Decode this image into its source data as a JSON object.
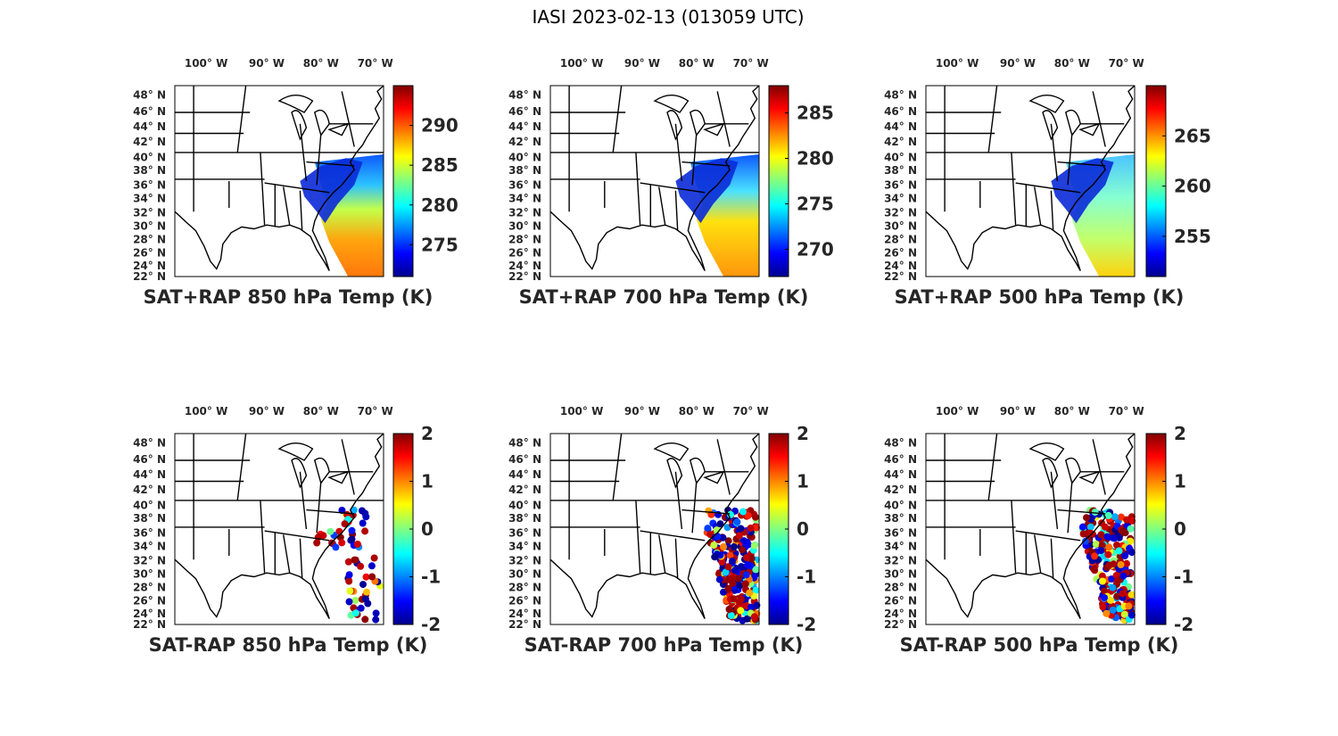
{
  "figure": {
    "title": "IASI 2023-02-13 (013059 UTC)"
  },
  "lon_ticks": [
    "100° W",
    "90° W",
    "80° W",
    "70° W"
  ],
  "lat_ticks": [
    "48° N",
    "46° N",
    "44° N",
    "42° N",
    "40° N",
    "38° N",
    "36° N",
    "34° N",
    "32° N",
    "30° N",
    "28° N",
    "26° N",
    "24° N",
    "22° N"
  ],
  "panels": [
    {
      "id": "p850sum",
      "label": "SAT+RAP 850 hPa Temp (K)",
      "kind": "field",
      "colorbar_ticks": [
        "290",
        "285",
        "280",
        "275"
      ],
      "range": [
        271,
        295
      ]
    },
    {
      "id": "p700sum",
      "label": "SAT+RAP 700 hPa Temp (K)",
      "kind": "field",
      "colorbar_ticks": [
        "285",
        "280",
        "275",
        "270"
      ],
      "range": [
        267,
        288
      ]
    },
    {
      "id": "p500sum",
      "label": "SAT+RAP 500 hPa Temp (K)",
      "kind": "field",
      "colorbar_ticks": [
        "265",
        "260",
        "255"
      ],
      "range": [
        251,
        270
      ]
    },
    {
      "id": "p850diff",
      "label": "SAT-RAP 850 hPa Temp (K)",
      "kind": "diff",
      "colorbar_ticks": [
        "2",
        "1",
        "0",
        "-1",
        "-2"
      ],
      "range": [
        -2,
        2
      ]
    },
    {
      "id": "p700diff",
      "label": "SAT-RAP 700 hPa Temp (K)",
      "kind": "diff",
      "colorbar_ticks": [
        "2",
        "1",
        "0",
        "-1",
        "-2"
      ],
      "range": [
        -2,
        2
      ]
    },
    {
      "id": "p500diff",
      "label": "SAT-RAP 500 hPa Temp (K)",
      "kind": "diff",
      "colorbar_ticks": [
        "2",
        "1",
        "0",
        "-1",
        "-2"
      ],
      "range": [
        -2,
        2
      ]
    }
  ],
  "colors": {
    "jet_low": "#00008f",
    "jet_high": "#800000",
    "border": "#000000"
  }
}
